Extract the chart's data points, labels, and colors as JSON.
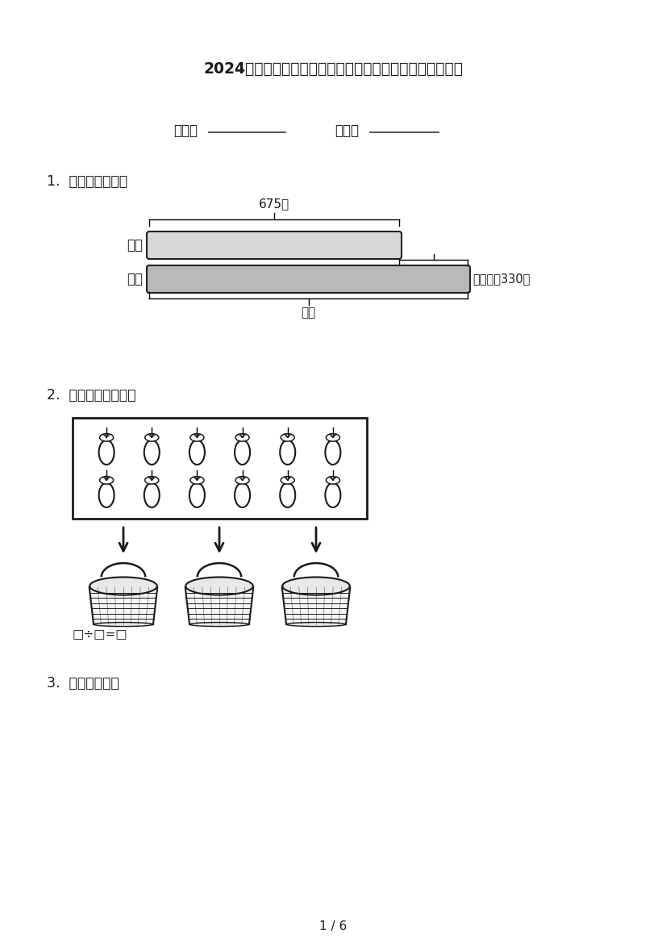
{
  "title": "2024年苏教版二年级数学上册看图列式计算专项综合练习题",
  "class_label": "班级：",
  "class_line": "___________",
  "name_label": "姓名：",
  "name_line": "__________",
  "section1": "1.  看图列式计算。",
  "bar_label_white": "白兔",
  "bar_label_black": "黑兔",
  "bar_top_label": "675只",
  "bar_right_label": "比白兔多330只",
  "bar_bottom_label": "？只",
  "section2": "2.  看图列式并计算。",
  "formula": "□÷□=□",
  "section3": "3.  看图写算式。",
  "page": "1 / 6",
  "bg_color": "#ffffff",
  "text_color": "#1a1a1a",
  "bar_fill_white": "#d8d8d8",
  "bar_fill_black": "#b8b8b8",
  "bar_stroke": "#222222"
}
